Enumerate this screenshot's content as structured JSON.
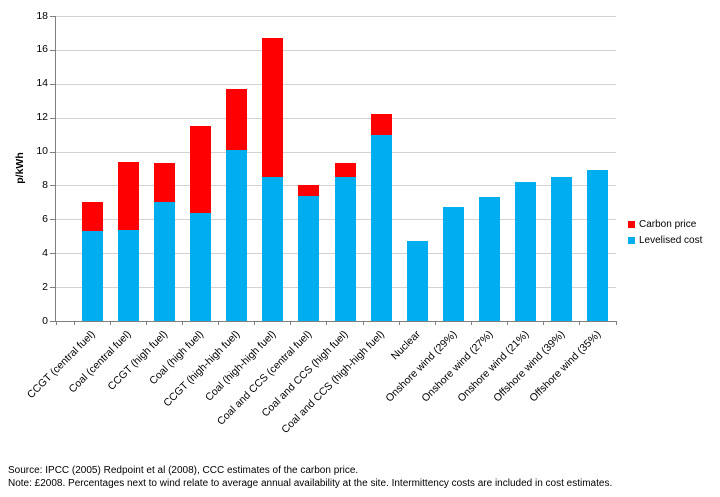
{
  "chart_data": {
    "type": "bar",
    "stacked": true,
    "title": "",
    "xlabel": "",
    "ylabel": "p/kWh",
    "ylim": [
      0,
      18
    ],
    "yticks": [
      0,
      2,
      4,
      6,
      8,
      10,
      12,
      14,
      16,
      18
    ],
    "grid": true,
    "grid_color": "#d2d2d2",
    "axis_color": "#7f7f7f",
    "legend_position": "right",
    "legend_order": [
      "Carbon price",
      "Levelised cost"
    ],
    "categories": [
      "CCGT (central fuel)",
      "Coal (central fuel)",
      "CCGT (high fuel)",
      "Coal (high fuel)",
      "CCGT (high-high fuel)",
      "Coal (high-high fuel)",
      "Coal and CCS (central fuel)",
      "Coal and CCS (high fuel)",
      "Coal and CCS (high-high fuel)",
      "Nuclear",
      "Onshore wind (29%)",
      "Onshore wind (27%)",
      "Onshore wind (21%)",
      "Offshore wind (39%)",
      "Offshore wind (35%)"
    ],
    "series": [
      {
        "name": "Levelised cost",
        "color": "#00AEEF",
        "values": [
          5.3,
          5.4,
          7.0,
          6.4,
          10.1,
          8.5,
          7.4,
          8.5,
          11.0,
          4.7,
          6.7,
          7.3,
          8.2,
          8.5,
          8.9
        ]
      },
      {
        "name": "Carbon price",
        "color": "#FE0000",
        "values": [
          1.7,
          4.0,
          2.3,
          5.1,
          3.6,
          8.2,
          0.6,
          0.8,
          1.2,
          0,
          0,
          0,
          0,
          0,
          0
        ]
      }
    ]
  },
  "footnotes": {
    "source": "Source: IPCC (2005) Redpoint et al (2008), CCC estimates of the carbon price.",
    "note": "Note: £2008. Percentages next to wind relate to average annual availability at the site. Intermittency costs are included in cost estimates."
  }
}
